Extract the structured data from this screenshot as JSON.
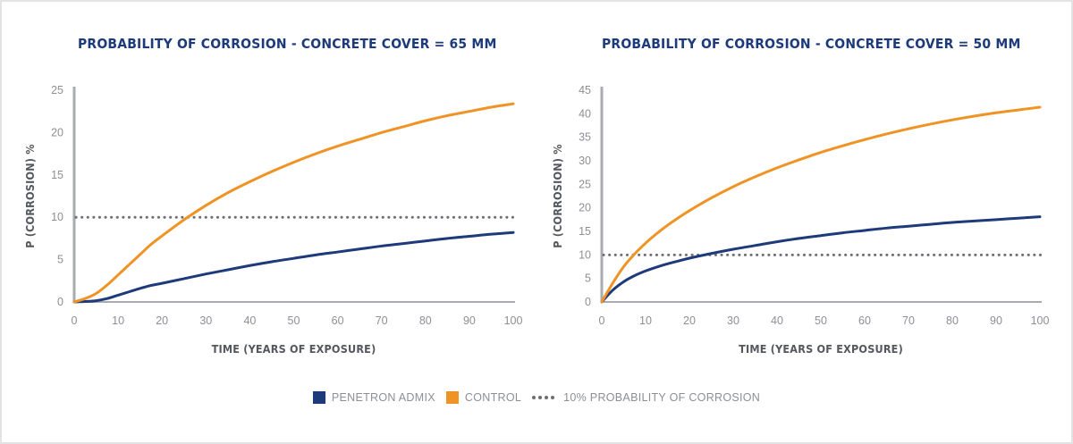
{
  "colors": {
    "penetron": "#1d3a7a",
    "control": "#ef9325",
    "threshold": "#6b6e73",
    "axis": "#a9abae",
    "title": "#1d3a7a"
  },
  "legend": {
    "penetron": "PENETRON ADMIX",
    "control": "CONTROL",
    "threshold": "10% PROBABILITY OF CORROSION"
  },
  "chart_data": [
    {
      "type": "line",
      "title": "PROBABILITY OF CORROSION - CONCRETE COVER = 65 MM",
      "xlabel": "TIME (YEARS OF EXPOSURE)",
      "ylabel": "P (CORROSION) %",
      "xlim": [
        0,
        100
      ],
      "ylim": [
        0,
        25
      ],
      "xticks": [
        0,
        10,
        20,
        30,
        40,
        50,
        60,
        70,
        80,
        90,
        100
      ],
      "yticks": [
        0,
        5,
        10,
        15,
        20,
        25
      ],
      "threshold": 10,
      "x": [
        0,
        2.5,
        5,
        7.5,
        10,
        12.5,
        15,
        17.5,
        20,
        25,
        30,
        35,
        40,
        45,
        50,
        55,
        60,
        65,
        70,
        75,
        80,
        85,
        90,
        95,
        100
      ],
      "series": [
        {
          "name": "PENETRON ADMIX",
          "values": [
            0,
            0.05,
            0.15,
            0.4,
            0.8,
            1.2,
            1.6,
            1.95,
            2.2,
            2.75,
            3.3,
            3.8,
            4.3,
            4.75,
            5.15,
            5.55,
            5.9,
            6.25,
            6.6,
            6.9,
            7.2,
            7.5,
            7.75,
            8.0,
            8.2
          ]
        },
        {
          "name": "CONTROL",
          "values": [
            0,
            0.4,
            1.0,
            2.0,
            3.2,
            4.4,
            5.6,
            6.8,
            7.8,
            9.7,
            11.4,
            12.9,
            14.2,
            15.4,
            16.5,
            17.5,
            18.4,
            19.2,
            20.0,
            20.7,
            21.4,
            22.0,
            22.5,
            23.0,
            23.4
          ]
        }
      ]
    },
    {
      "type": "line",
      "title": "PROBABILITY OF CORROSION - CONCRETE COVER = 50 MM",
      "xlabel": "TIME (YEARS OF EXPOSURE)",
      "ylabel": "P (CORROSION) %",
      "xlim": [
        0,
        100
      ],
      "ylim": [
        0,
        45
      ],
      "xticks": [
        0,
        10,
        20,
        30,
        40,
        50,
        60,
        70,
        80,
        90,
        100
      ],
      "yticks": [
        0,
        5,
        10,
        15,
        20,
        25,
        30,
        35,
        40,
        45
      ],
      "threshold": 10,
      "x": [
        0,
        2.5,
        5,
        7.5,
        10,
        12.5,
        15,
        17.5,
        20,
        25,
        30,
        35,
        40,
        45,
        50,
        55,
        60,
        65,
        70,
        75,
        80,
        85,
        90,
        95,
        100
      ],
      "series": [
        {
          "name": "PENETRON ADMIX",
          "values": [
            0,
            2.5,
            4.3,
            5.6,
            6.6,
            7.4,
            8.1,
            8.7,
            9.3,
            10.3,
            11.2,
            12.0,
            12.8,
            13.5,
            14.1,
            14.7,
            15.2,
            15.7,
            16.1,
            16.5,
            16.9,
            17.2,
            17.5,
            17.8,
            18.1
          ]
        },
        {
          "name": "CONTROL",
          "values": [
            0,
            4.0,
            7.5,
            10.2,
            12.5,
            14.5,
            16.3,
            17.9,
            19.4,
            22.1,
            24.5,
            26.6,
            28.5,
            30.2,
            31.8,
            33.2,
            34.5,
            35.7,
            36.8,
            37.8,
            38.7,
            39.5,
            40.2,
            40.8,
            41.4
          ]
        }
      ]
    }
  ]
}
